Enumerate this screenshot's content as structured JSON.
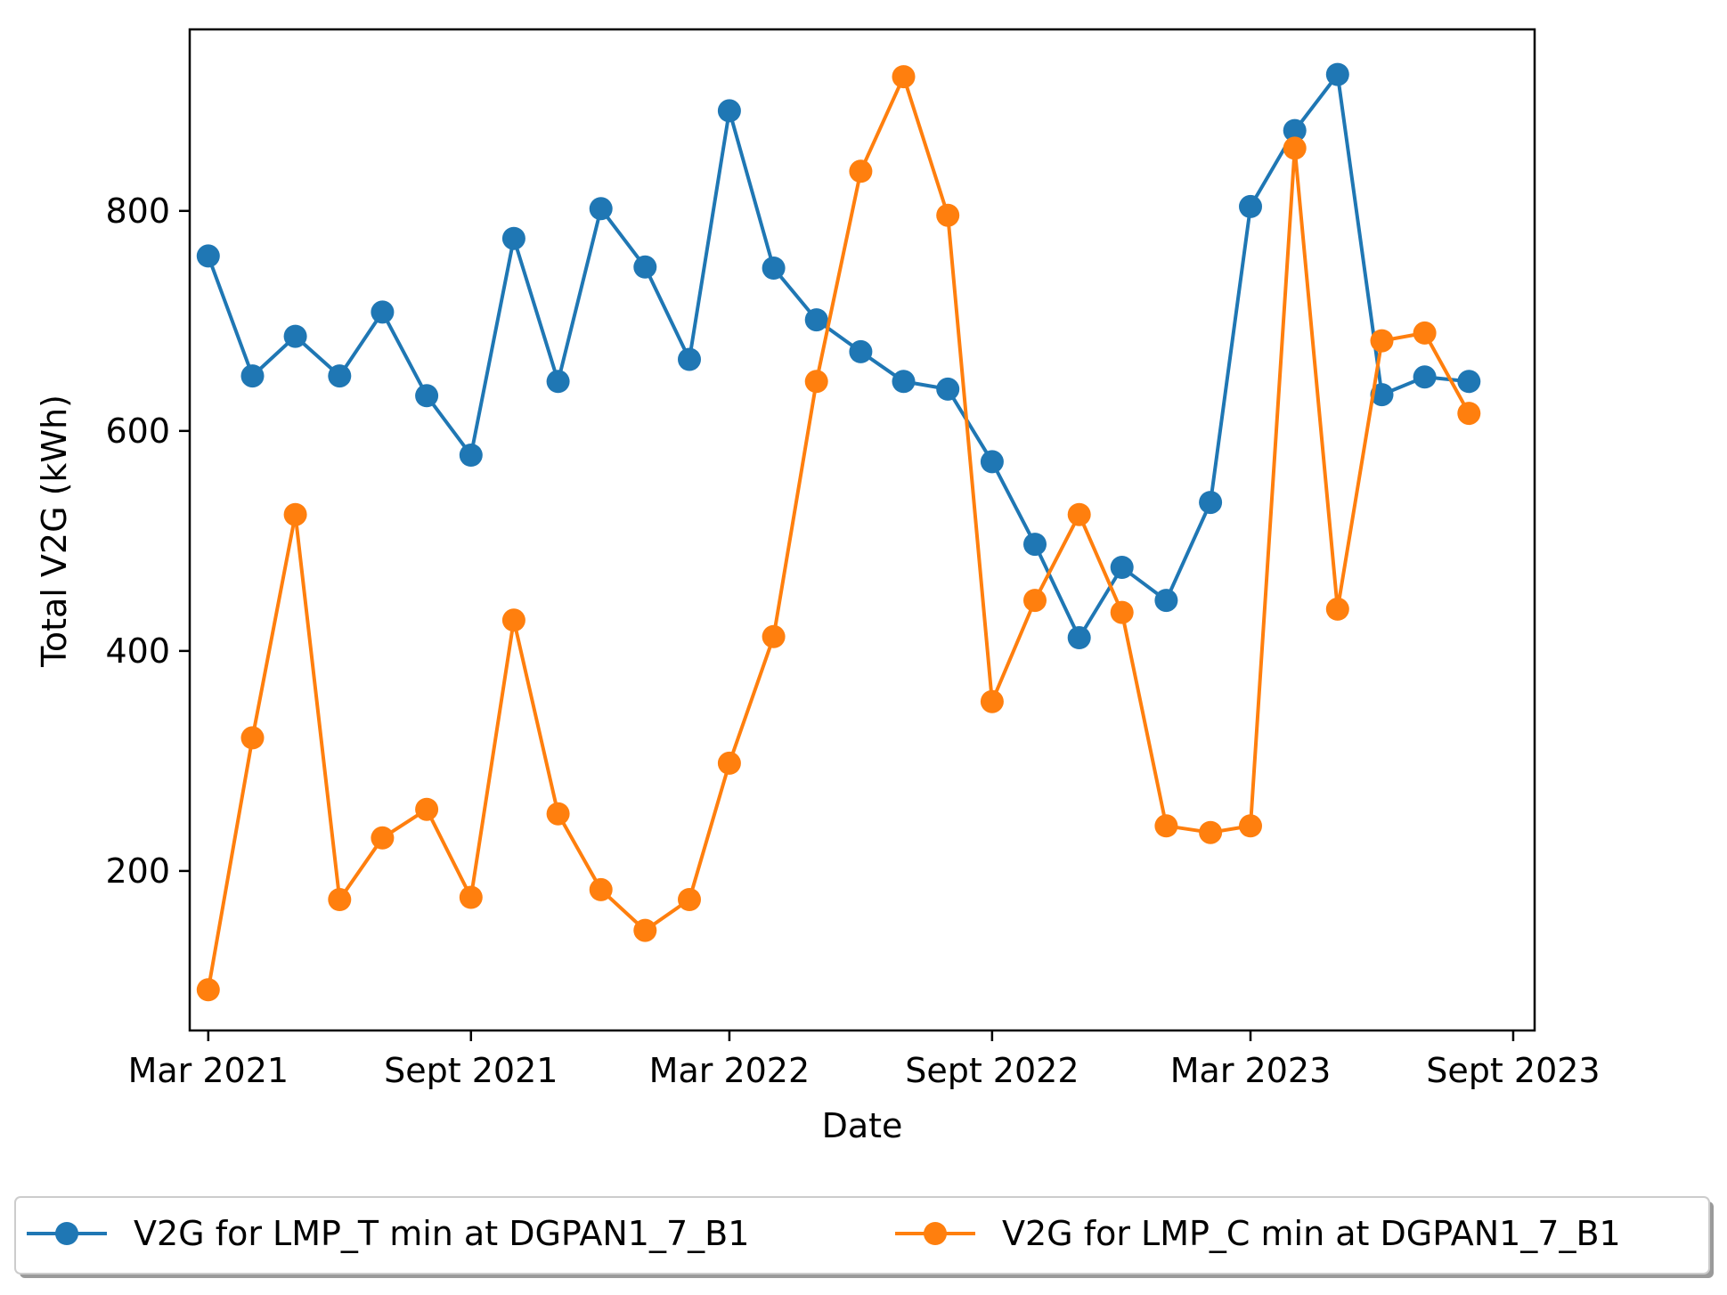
{
  "chart_data": {
    "type": "line",
    "title": "",
    "xlabel": "Date",
    "ylabel": "Total V2G (kWh)",
    "xlim": [
      "2021-02-16",
      "2023-09-16"
    ],
    "ylim": [
      55,
      965
    ],
    "x_ticks": [
      {
        "date": "2021-03-01",
        "label": "Mar 2021"
      },
      {
        "date": "2021-09-01",
        "label": "Sept 2021"
      },
      {
        "date": "2022-03-01",
        "label": "Mar 2022"
      },
      {
        "date": "2022-09-01",
        "label": "Sept 2022"
      },
      {
        "date": "2023-03-01",
        "label": "Mar 2023"
      },
      {
        "date": "2023-09-01",
        "label": "Sept 2023"
      }
    ],
    "y_ticks": [
      200,
      400,
      600,
      800
    ],
    "x": [
      "2021-03-01",
      "2021-04-01",
      "2021-05-01",
      "2021-06-01",
      "2021-07-01",
      "2021-08-01",
      "2021-09-01",
      "2021-10-01",
      "2021-11-01",
      "2021-12-01",
      "2022-01-01",
      "2022-02-01",
      "2022-03-01",
      "2022-04-01",
      "2022-05-01",
      "2022-06-01",
      "2022-07-01",
      "2022-08-01",
      "2022-09-01",
      "2022-10-01",
      "2022-11-01",
      "2022-12-01",
      "2023-01-01",
      "2023-02-01",
      "2023-03-01",
      "2023-04-01",
      "2023-05-01",
      "2023-06-01",
      "2023-07-01",
      "2023-08-01"
    ],
    "series": [
      {
        "name": "V2G for LMP_T min at DGPAN1_7_B1",
        "color": "#1f77b4",
        "values": [
          759,
          650,
          686,
          650,
          708,
          632,
          578,
          775,
          645,
          802,
          749,
          665,
          891,
          748,
          701,
          672,
          645,
          638,
          572,
          497,
          412,
          476,
          446,
          535,
          804,
          873,
          924,
          633,
          649,
          645
        ]
      },
      {
        "name": "V2G for LMP_C min at DGPAN1_7_B1",
        "color": "#ff7f0e",
        "values": [
          92,
          321,
          524,
          174,
          230,
          256,
          176,
          428,
          252,
          183,
          146,
          174,
          298,
          413,
          645,
          836,
          922,
          796,
          354,
          446,
          524,
          435,
          241,
          235,
          241,
          857,
          438,
          682,
          689,
          616
        ]
      }
    ],
    "legend": {
      "location": "bottom-outside",
      "columns": 2
    },
    "grid": false
  }
}
